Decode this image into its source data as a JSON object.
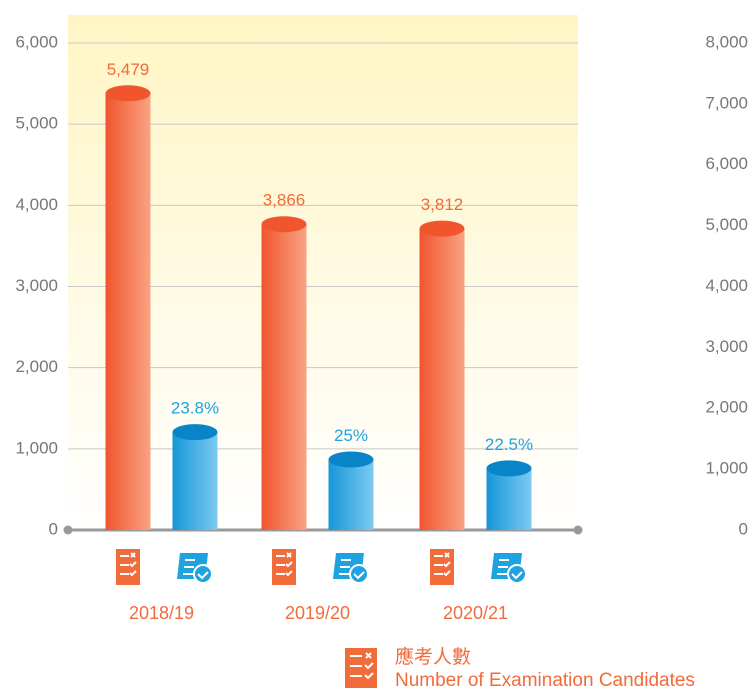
{
  "chart_data": {
    "type": "cylinder-bar",
    "categories": [
      "2018/19",
      "2019/20",
      "2020/21"
    ],
    "series": [
      {
        "name": "應考人數",
        "name_en": "Number of Examination Candidates",
        "color": "#f26b3a",
        "values": [
          5479,
          3866,
          3812
        ],
        "value_labels": [
          "5,479",
          "3,866",
          "3,812"
        ]
      },
      {
        "color": "#1fa3e0",
        "values": [
          1304,
          967,
          858
        ],
        "labels": [
          "23.8%",
          "25%",
          "22.5%"
        ]
      }
    ],
    "ylim": [
      0,
      6000
    ],
    "yticks": [
      0,
      {
        "value": 1000,
        "label": "1,000"
      },
      {
        "value": 2000,
        "label": "2,000"
      },
      {
        "value": 3000,
        "label": "3,000"
      },
      {
        "value": 4000,
        "label": "4,000"
      },
      {
        "value": 5000,
        "label": "5,000"
      },
      {
        "value": 6000,
        "label": "6,000"
      }
    ],
    "y2lim": [
      0,
      8000
    ],
    "y2ticks": [
      0,
      {
        "value": 1000,
        "label": "1,000"
      },
      {
        "value": 2000,
        "label": "2,000"
      },
      {
        "value": 3000,
        "label": "3,000"
      },
      {
        "value": 4000,
        "label": "4,000"
      },
      {
        "value": 5000,
        "label": "5,000"
      },
      {
        "value": 6000,
        "label": "6,000"
      },
      {
        "value": 7000,
        "label": "7,000"
      },
      {
        "value": 8000,
        "label": "8,000"
      }
    ],
    "grid": true
  }
}
